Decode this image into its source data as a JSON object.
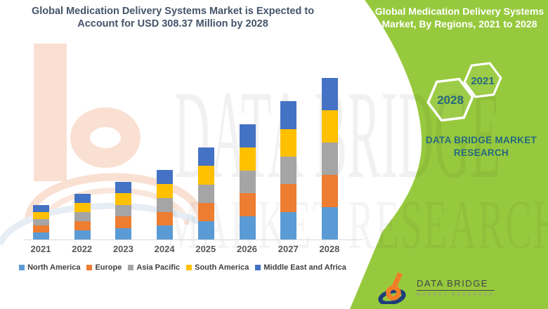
{
  "header": {
    "title_line1": "Global Medication Delivery Systems Market is Expected to",
    "title_line2": "Account for USD 308.37 Million by 2028"
  },
  "side_panel": {
    "background_color": "#97C93E",
    "heading_line1": "Global Medication Delivery Systems",
    "heading_line2": "Market, By Regions, 2021 to 2028",
    "badge_years": {
      "first": "2028",
      "second": "2021"
    },
    "brand_line1": "DATA BRIDGE MARKET",
    "brand_line2": "RESEARCH"
  },
  "watermark": {
    "line1": "DATA BRIDGE",
    "line2": "MARKET RESEARCH"
  },
  "footer_logo": {
    "name": "DATA BRIDGE",
    "tagline": "MARKET RESEARCH"
  },
  "chart_data": {
    "type": "bar",
    "stacked": true,
    "title": "Global Medication Delivery Systems Market, By Regions, 2021 to 2028",
    "unit": "USD Million",
    "categories": [
      "2021",
      "2022",
      "2023",
      "2024",
      "2025",
      "2026",
      "2027",
      "2028"
    ],
    "series": [
      {
        "name": "North America",
        "color": "#5B9BD5",
        "values": [
          13.1,
          17.4,
          22.0,
          26.5,
          35.1,
          44.0,
          52.8,
          61.7
        ]
      },
      {
        "name": "Europe",
        "color": "#ED7D31",
        "values": [
          13.1,
          17.4,
          22.0,
          26.5,
          35.1,
          44.0,
          52.8,
          61.7
        ]
      },
      {
        "name": "Asia Pacific",
        "color": "#A5A5A5",
        "values": [
          13.1,
          17.4,
          22.0,
          26.5,
          35.1,
          44.0,
          52.8,
          61.7
        ]
      },
      {
        "name": "South America",
        "color": "#FFC000",
        "values": [
          13.1,
          17.4,
          22.0,
          26.5,
          35.1,
          44.0,
          52.8,
          61.7
        ]
      },
      {
        "name": "Middle East and Africa",
        "color": "#4472C4",
        "values": [
          13.1,
          17.4,
          22.0,
          26.5,
          35.1,
          44.0,
          52.8,
          61.7
        ]
      }
    ],
    "estimated_totals": [
      65.5,
      87.0,
      110.0,
      132.5,
      175.5,
      220.0,
      264.0,
      308.37
    ],
    "ylim": [
      0,
      310
    ],
    "grid": false,
    "legend_position": "bottom"
  }
}
